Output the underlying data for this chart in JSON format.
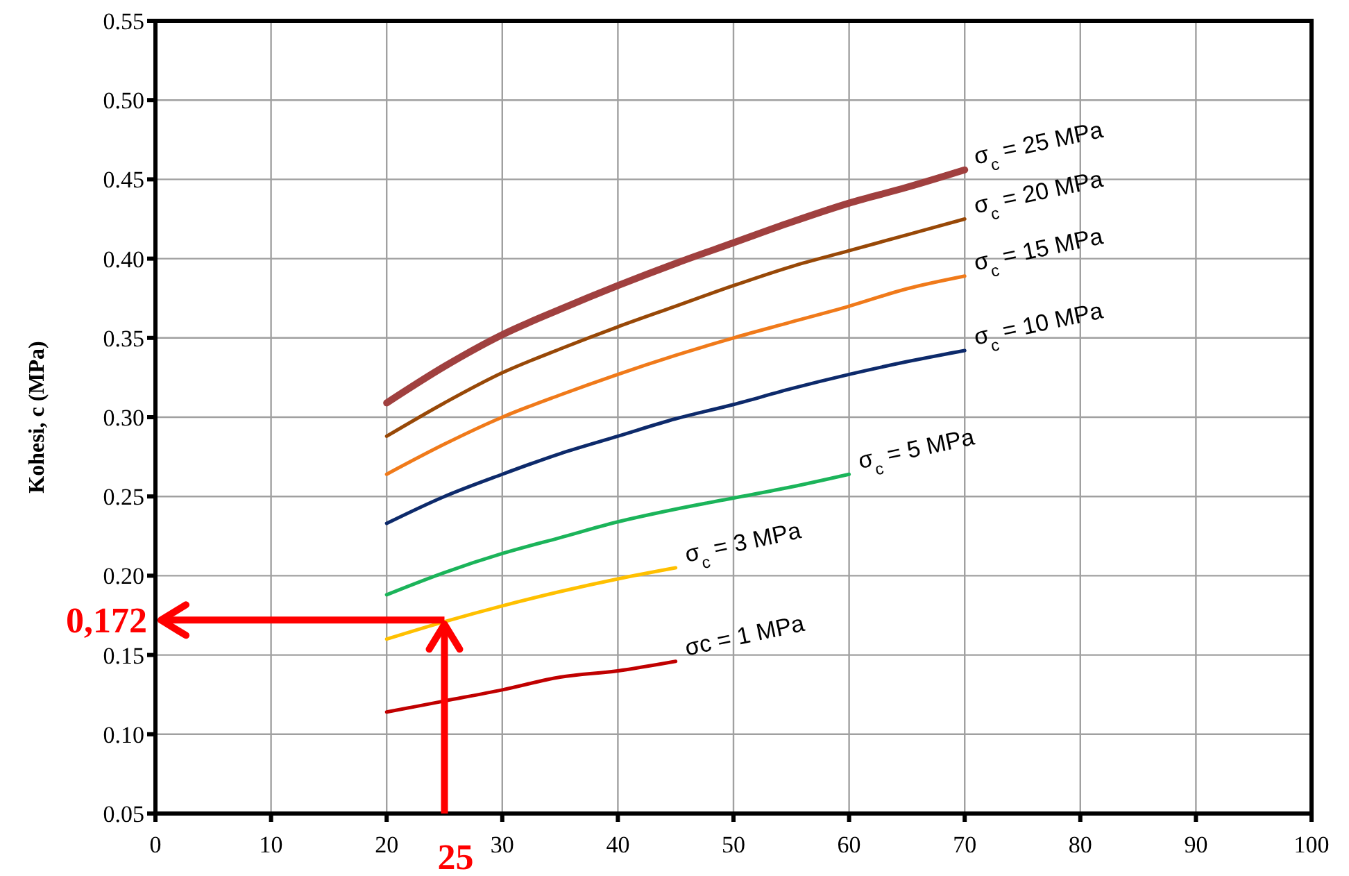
{
  "chart_data": {
    "type": "line",
    "ylabel": "Kohesi, c (MPa)",
    "x": [
      20,
      25,
      30,
      35,
      40,
      45,
      50,
      55,
      60,
      65,
      70
    ],
    "series": [
      {
        "name": "σ$_{c}$ = 25 MPa",
        "color": "#a0403f",
        "values": [
          0.309,
          0.332,
          0.352,
          0.368,
          0.383,
          0.397,
          0.41,
          0.423,
          0.435,
          0.445,
          0.456
        ]
      },
      {
        "name": "σ$_{c}$ = 20 MPa",
        "color": "#984807",
        "values": [
          0.288,
          0.309,
          0.328,
          0.343,
          0.357,
          0.37,
          0.383,
          0.395,
          0.405,
          0.415,
          0.425
        ]
      },
      {
        "name": "σ$_{c}$ = 15 MPa",
        "color": "#f07a1a",
        "values": [
          0.264,
          0.283,
          0.3,
          0.314,
          0.327,
          0.339,
          0.35,
          0.36,
          0.37,
          0.381,
          0.389
        ]
      },
      {
        "name": "σ$_{c}$ = 10 MPa",
        "color": "#0d2a6b",
        "values": [
          0.233,
          0.25,
          0.264,
          0.277,
          0.288,
          0.299,
          0.308,
          0.318,
          0.327,
          0.335,
          0.342
        ]
      },
      {
        "name": "σ$_{c}$ = 5 MPa",
        "color": "#1bb45a",
        "values": [
          0.188,
          0.202,
          0.214,
          0.224,
          0.234,
          0.242,
          0.249,
          0.256,
          0.264,
          null,
          null
        ]
      },
      {
        "name": "σ$_{c}$ = 3 MPa",
        "color": "#ffc000",
        "values": [
          0.16,
          0.171,
          0.181,
          0.19,
          0.198,
          0.205,
          null,
          null,
          null,
          null,
          null
        ]
      },
      {
        "name": "σc = 1 MPa",
        "color": "#c00000",
        "values": [
          0.114,
          0.121,
          0.128,
          0.136,
          0.14,
          0.146,
          null,
          null,
          null,
          null,
          null
        ]
      }
    ],
    "xlim": [
      0,
      100
    ],
    "xticks": [
      0,
      10,
      20,
      30,
      40,
      50,
      60,
      70,
      80,
      90,
      100
    ],
    "ylim": [
      0.05,
      0.55
    ],
    "yticks": [
      {
        "value": 0.05,
        "label": "0.05"
      },
      {
        "value": 0.1,
        "label": "0.10"
      },
      {
        "value": 0.15,
        "label": "0.15"
      },
      {
        "value": 0.2,
        "label": "0.20"
      },
      {
        "value": 0.25,
        "label": "0.25"
      },
      {
        "value": 0.3,
        "label": "0.30"
      },
      {
        "value": 0.35,
        "label": "0.35"
      },
      {
        "value": 0.4,
        "label": "0.40"
      },
      {
        "value": 0.45,
        "label": "0.45"
      },
      {
        "value": 0.5,
        "label": "0.50"
      },
      {
        "value": 0.55,
        "label": "0.55"
      }
    ],
    "grid": true,
    "marker": "none",
    "line_style": "solid",
    "ref_lines": [
      {
        "axis": "y",
        "value": 0.172,
        "label": "0,172",
        "color": "#ff0000"
      },
      {
        "axis": "x",
        "value": 25,
        "label": "25",
        "color": "#ff0000"
      }
    ]
  }
}
